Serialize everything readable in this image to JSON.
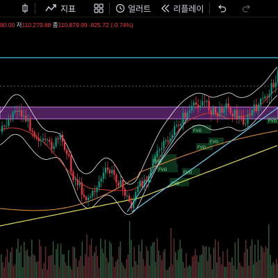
{
  "toolbar": {
    "indicators_label": "지표",
    "alert_label": "얼러트",
    "replay_label": "리플레이"
  },
  "ohlc": {
    "open_value": "80.00",
    "low_label": "저",
    "low_value": "110,279.68",
    "close_label": "종",
    "close_value": "110,879.99",
    "change": "-825.72 (-0.74%)"
  },
  "icons": [
    "candle-toggle-icon",
    "indicators-icon",
    "layout-grid-icon",
    "alert-clock-icon",
    "replay-icon",
    "undo-icon",
    "redo-icon"
  ],
  "colors": {
    "background": "#000000",
    "up": "#089981",
    "down": "#f23645",
    "bollinger": "#d9d9d9",
    "sma_short": "#c0392b",
    "sma_mid": "#d68a3a",
    "sma_long": "#e0dc5a",
    "horizontal_line": "#3fc5de",
    "trendline": "#6ec6e6",
    "zone": "#b66cd6",
    "fvg": "#2fb560"
  },
  "chart_data": {
    "type": "candlestick",
    "fvg_labels": [
      "FVG",
      "FVG",
      "FVG",
      "FVG",
      "FVG",
      "FVG",
      "FVG",
      "FVG"
    ]
  }
}
